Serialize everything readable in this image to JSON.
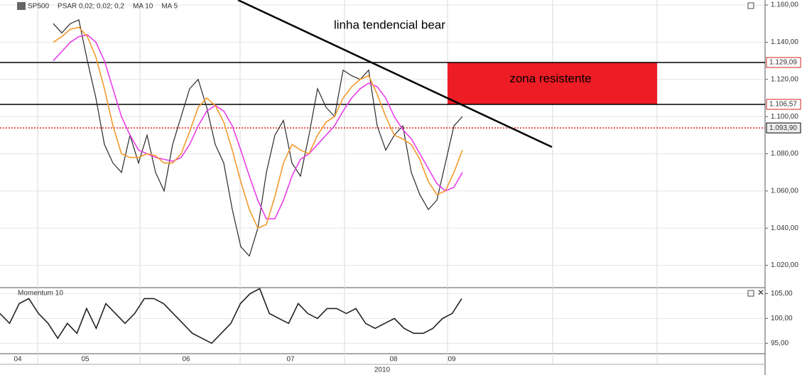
{
  "chart_data": [
    {
      "type": "line",
      "indicators": [
        "PSAR 0,02; 0,02; 0,2"
      ],
      "series": [
        {
          "name": "SP500",
          "color": "#2a2a2a",
          "values": [
            1150,
            1145,
            1150,
            1152,
            1130,
            1110,
            1085,
            1075,
            1070,
            1090,
            1075,
            1090,
            1070,
            1060,
            1085,
            1100,
            1115,
            1120,
            1105,
            1085,
            1075,
            1050,
            1030,
            1025,
            1040,
            1070,
            1090,
            1098,
            1075,
            1068,
            1090,
            1115,
            1105,
            1100,
            1125,
            1122,
            1120,
            1125,
            1095,
            1082,
            1090,
            1095,
            1070,
            1058,
            1050,
            1055,
            1075,
            1095,
            1100
          ]
        },
        {
          "name": "MA 10",
          "color": "#e83ee8",
          "values": [
            1130,
            1135,
            1140,
            1143,
            1144,
            1140,
            1130,
            1115,
            1100,
            1090,
            1082,
            1080,
            1078,
            1077,
            1076,
            1078,
            1085,
            1095,
            1103,
            1106,
            1103,
            1095,
            1082,
            1068,
            1055,
            1045,
            1045,
            1055,
            1068,
            1077,
            1080,
            1085,
            1090,
            1095,
            1103,
            1110,
            1115,
            1118,
            1116,
            1110,
            1100,
            1093,
            1088,
            1080,
            1072,
            1064,
            1060,
            1062,
            1070
          ]
        },
        {
          "name": "MA 5",
          "color": "#f39a2c",
          "values": [
            1140,
            1143,
            1147,
            1148,
            1143,
            1132,
            1115,
            1095,
            1080,
            1078,
            1078,
            1080,
            1079,
            1075,
            1075,
            1080,
            1092,
            1105,
            1110,
            1106,
            1097,
            1082,
            1065,
            1050,
            1040,
            1042,
            1057,
            1075,
            1085,
            1082,
            1080,
            1090,
            1097,
            1100,
            1110,
            1116,
            1120,
            1122,
            1112,
            1100,
            1090,
            1088,
            1085,
            1077,
            1065,
            1058,
            1060,
            1070,
            1082
          ]
        }
      ],
      "ylim": [
        1008,
        1162.7
      ],
      "yticks": [
        {
          "value": 1020,
          "label": "1.020,00"
        },
        {
          "value": 1040,
          "label": "1.040,00"
        },
        {
          "value": 1060,
          "label": "1.060,00"
        },
        {
          "value": 1080,
          "label": "1.080,00"
        },
        {
          "value": 1100,
          "label": "1.100,00"
        },
        {
          "value": 1120,
          "label": "1.120,00"
        },
        {
          "value": 1140,
          "label": "1.140,00"
        },
        {
          "value": 1160,
          "label": "1.160,00"
        }
      ],
      "levels": [
        {
          "value": 1129.09,
          "label": "1.129,09",
          "color": "#d42020"
        },
        {
          "value": 1106.57,
          "label": "1.106,57",
          "color": "#d42020"
        },
        {
          "value": 1093.9,
          "label": "1.093,90",
          "color": "#000000"
        }
      ],
      "annotations": [
        "linha tendencial bear",
        "zona resistente"
      ],
      "grid": true
    },
    {
      "type": "line",
      "title": "Momentum 10",
      "series": [
        {
          "color": "#222222",
          "values": [
            101,
            99,
            103,
            104,
            101,
            99,
            96,
            99,
            97,
            102,
            98,
            103,
            101,
            99,
            101,
            104,
            104,
            103,
            101,
            99,
            97,
            96,
            95,
            97,
            99,
            103,
            105,
            106,
            101,
            100,
            99,
            103,
            101,
            100,
            102,
            102,
            101,
            102,
            99,
            98,
            99,
            100,
            98,
            97,
            97,
            98,
            100,
            101,
            104
          ]
        }
      ],
      "ylim": [
        92.9,
        106.2
      ],
      "yticks": [
        {
          "value": 95,
          "label": "95,00"
        },
        {
          "value": 100,
          "label": "100,00"
        },
        {
          "value": 105,
          "label": "105,00"
        }
      ],
      "x_labels": [
        "04",
        "05",
        "06",
        "07",
        "08",
        "09"
      ],
      "x_year_label": "2010",
      "grid": true
    }
  ]
}
